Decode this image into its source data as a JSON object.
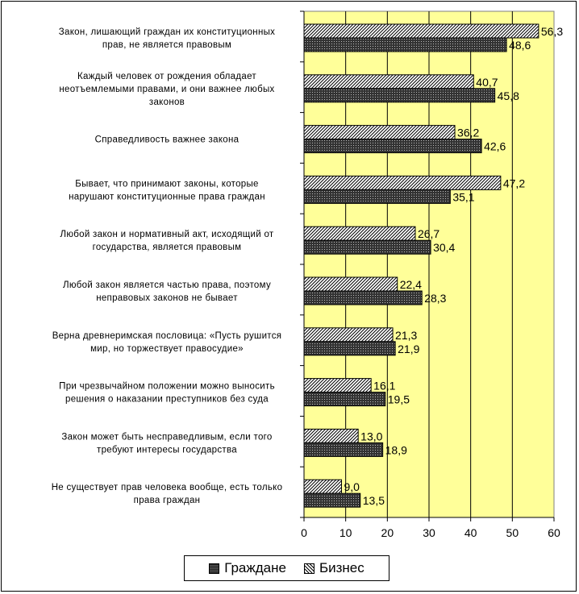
{
  "colors": {
    "plot_bg": "#ffff99",
    "grazhdane": "#333333",
    "biznes": "#ffffff"
  },
  "legend": {
    "items": [
      {
        "label": "Граждане",
        "pattern": "dense-cross"
      },
      {
        "label": "Бизнес",
        "pattern": "diagonal"
      }
    ]
  },
  "chart_data": {
    "type": "bar",
    "orientation": "horizontal",
    "xlim": [
      0,
      60
    ],
    "xticks": [
      0,
      10,
      20,
      30,
      40,
      50,
      60
    ],
    "decimal_separator": ",",
    "legend_position": "bottom",
    "categories": [
      [
        "Закон, лишающий граждан их конституционных",
        "прав, не является правовым"
      ],
      [
        "Каждый человек от рождения обладает",
        "неотъемлемыми правами, и они важнее любых",
        "законов"
      ],
      [
        "Справедливость важнее закона"
      ],
      [
        "Бывает, что принимают законы, которые",
        "нарушают конституционные права граждан"
      ],
      [
        "Любой закон и нормативный акт, исходящий от",
        "государства, является правовым"
      ],
      [
        "Любой закон является частью права, поэтому",
        "неправовых законов не бывает"
      ],
      [
        "Верна древнеримская пословица: «Пусть рушится",
        "мир, но торжествует правосудие»"
      ],
      [
        "При чрезвычайном положении можно выносить",
        "решения о наказании преступников без суда"
      ],
      [
        "Закон может быть несправедливым, если того",
        "требуют интересы государства"
      ],
      [
        "Не существует прав человека вообще, есть только",
        "права граждан"
      ]
    ],
    "series": [
      {
        "name": "Бизнес",
        "values": [
          56.3,
          40.7,
          36.2,
          47.2,
          26.7,
          22.4,
          21.3,
          16.1,
          13.0,
          9.0
        ]
      },
      {
        "name": "Граждане",
        "values": [
          48.6,
          45.8,
          42.6,
          35.1,
          30.4,
          28.3,
          21.9,
          19.5,
          18.9,
          13.5
        ]
      }
    ]
  }
}
